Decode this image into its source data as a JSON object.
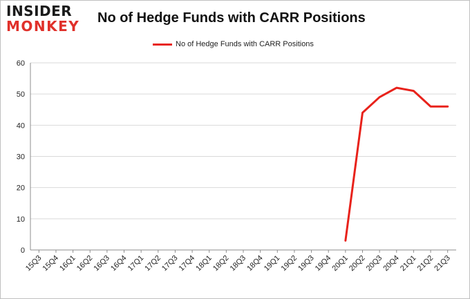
{
  "logo": {
    "line1": "INSIDER",
    "line2": "MONKEY"
  },
  "colors": {
    "series": "#e8221b",
    "grid": "#d9d9d9",
    "axis": "#8c8c8c"
  },
  "chart_data": {
    "type": "line",
    "title": "No of Hedge Funds with CARR Positions",
    "legend_position": "top",
    "grid": true,
    "categories": [
      "15Q3",
      "15Q4",
      "16Q1",
      "16Q2",
      "16Q3",
      "16Q4",
      "17Q1",
      "17Q2",
      "17Q3",
      "17Q4",
      "18Q1",
      "18Q2",
      "18Q3",
      "18Q4",
      "19Q1",
      "19Q2",
      "19Q3",
      "19Q4",
      "20Q1",
      "20Q2",
      "20Q3",
      "20Q4",
      "21Q1",
      "21Q2",
      "21Q3"
    ],
    "yticks": [
      "0",
      "10",
      "20",
      "30",
      "40",
      "50",
      "60"
    ],
    "ylim": [
      0,
      60
    ],
    "series": [
      {
        "name": "No of Hedge Funds with CARR Positions",
        "values": [
          null,
          null,
          null,
          null,
          null,
          null,
          null,
          null,
          null,
          null,
          null,
          null,
          null,
          null,
          null,
          null,
          null,
          null,
          3,
          44,
          49,
          52,
          51,
          46,
          46
        ]
      }
    ]
  }
}
